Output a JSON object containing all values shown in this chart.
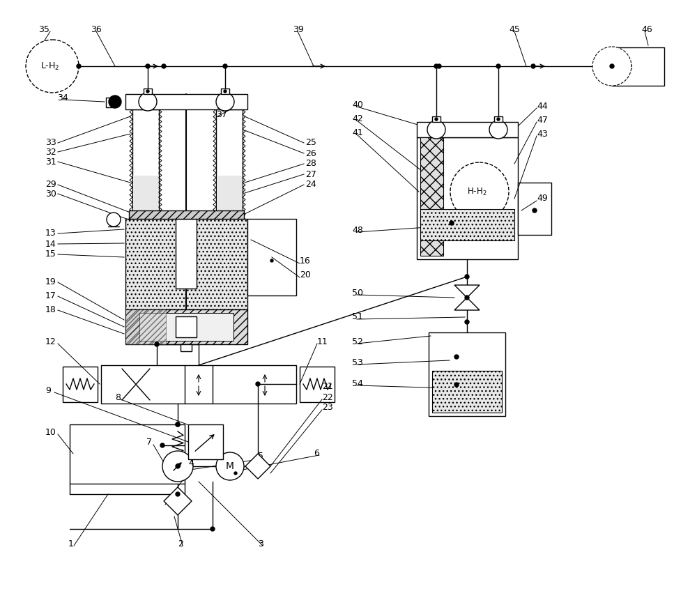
{
  "background_color": "#ffffff",
  "fig_width": 10.0,
  "fig_height": 8.81,
  "dpi": 100
}
